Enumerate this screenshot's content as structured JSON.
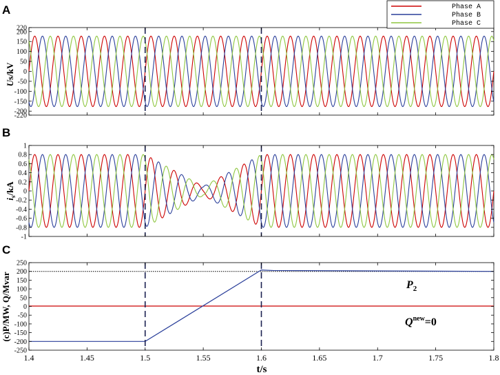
{
  "figure": {
    "x_axis_label": "t/s",
    "legend": [
      {
        "label": "Phase A",
        "color": "#cc0000"
      },
      {
        "label": "Phase B",
        "color": "#2a3f9a"
      },
      {
        "label": "Phase C",
        "color": "#8ec63f"
      }
    ]
  },
  "chart_data": [
    {
      "panel": "A",
      "type": "line",
      "ylabel_main": "U",
      "ylabel_rest": "s/kV",
      "xlim": [
        1.4,
        1.8
      ],
      "ylim": [
        -220,
        220
      ],
      "yticks": [
        -220,
        -200,
        -150,
        -100,
        -50,
        0,
        50,
        100,
        150,
        200,
        220
      ],
      "event_lines_x": [
        1.5,
        1.6
      ],
      "waveform": {
        "frequency_hz": 50,
        "amplitude_kV": 177
      },
      "series": [
        {
          "name": "Phase A",
          "color": "#cc0000",
          "phase_deg": 0
        },
        {
          "name": "Phase B",
          "color": "#2a3f9a",
          "phase_deg": -120
        },
        {
          "name": "Phase C",
          "color": "#8ec63f",
          "phase_deg": 120
        }
      ]
    },
    {
      "panel": "B",
      "type": "line",
      "ylabel_main": "i",
      "ylabel_sub": "s",
      "ylabel_rest": "/kA",
      "xlim": [
        1.4,
        1.8
      ],
      "ylim": [
        -1,
        1
      ],
      "yticks": [
        -1,
        -0.8,
        -0.6,
        -0.4,
        -0.2,
        0,
        0.2,
        0.4,
        0.6,
        0.8,
        1
      ],
      "event_lines_x": [
        1.5,
        1.6
      ],
      "waveform": {
        "frequency_hz": 50,
        "envelope_x": [
          1.4,
          1.5,
          1.55,
          1.6,
          1.8
        ],
        "envelope_kA": [
          0.8,
          0.8,
          0.1,
          0.8,
          0.8
        ]
      },
      "series": [
        {
          "name": "Phase A",
          "color": "#cc0000",
          "phase_deg": 0
        },
        {
          "name": "Phase B",
          "color": "#2a3f9a",
          "phase_deg": -120
        },
        {
          "name": "Phase C",
          "color": "#8ec63f",
          "phase_deg": 120
        }
      ]
    },
    {
      "panel": "C",
      "type": "line",
      "ylabel": "(c)P/MW, Q/Mvar",
      "xlim": [
        1.4,
        1.8
      ],
      "ylim": [
        -250,
        250
      ],
      "yticks": [
        -250,
        -200,
        -150,
        -100,
        -50,
        0,
        50,
        100,
        150,
        200,
        250
      ],
      "xticks": [
        1.4,
        1.45,
        1.5,
        1.55,
        1.6,
        1.65,
        1.7,
        1.75,
        1.8
      ],
      "event_lines_x": [
        1.5,
        1.6
      ],
      "reference_line_y": 200,
      "series": [
        {
          "name": "P",
          "color": "#2a3f9a",
          "x": [
            1.4,
            1.5,
            1.6,
            1.61,
            1.8
          ],
          "y": [
            -200,
            -200,
            208,
            205,
            200
          ]
        },
        {
          "name": "Q",
          "color": "#cc0000",
          "x": [
            1.4,
            1.8
          ],
          "y": [
            2,
            2
          ]
        }
      ],
      "annotations": {
        "p_main": "P",
        "p_sub": "2",
        "q_main": "Q",
        "q_sup": "new",
        "q_rest": "=0"
      }
    }
  ]
}
